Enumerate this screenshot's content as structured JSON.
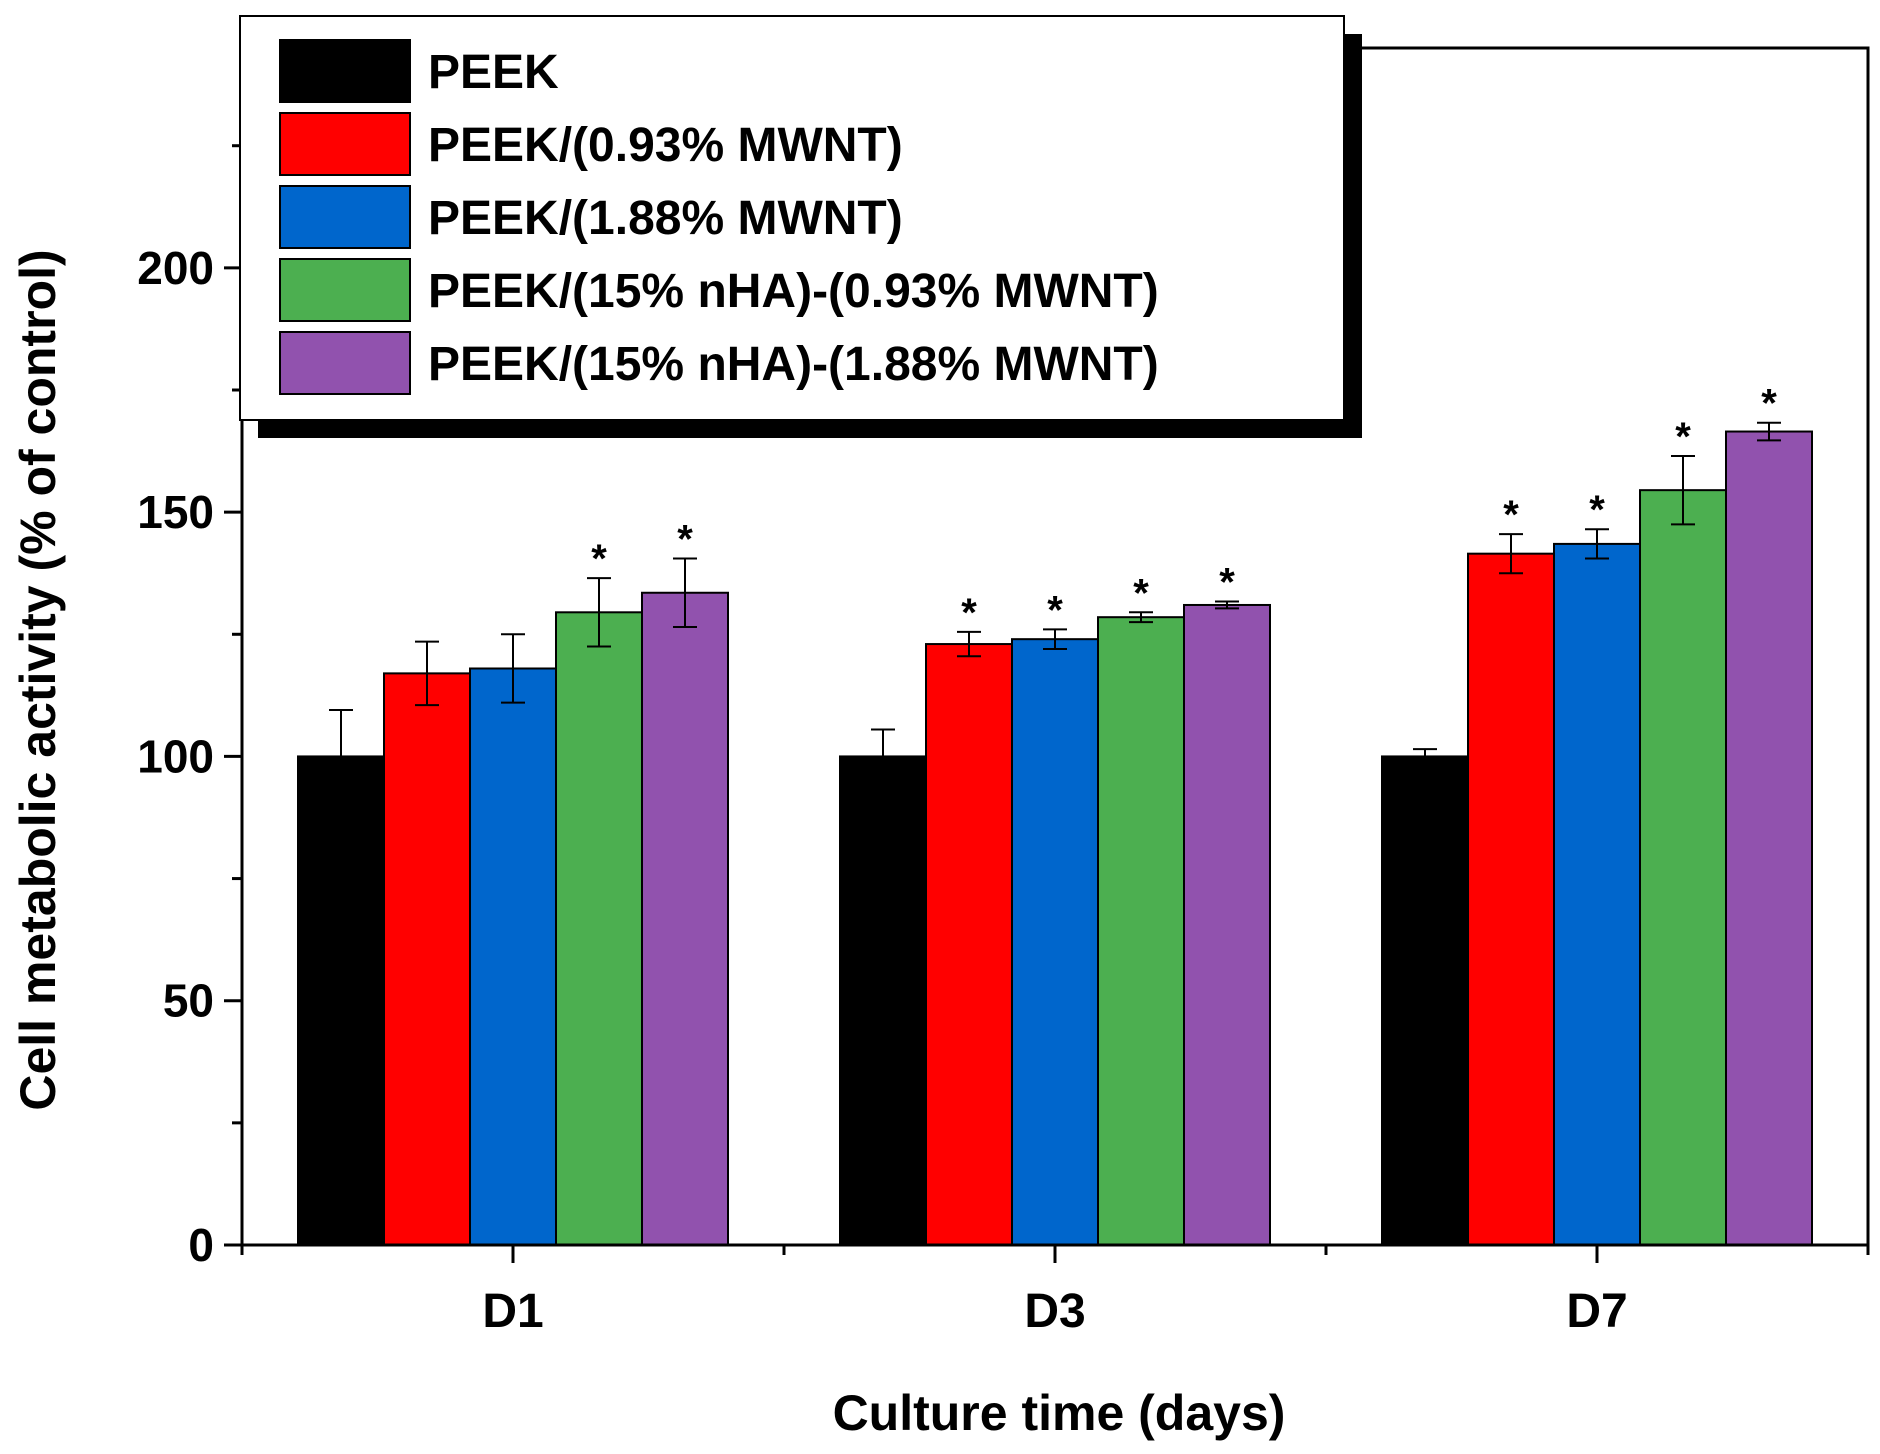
{
  "chart_data": {
    "type": "bar",
    "title": "",
    "xlabel": "Culture time (days)",
    "ylabel": "Cell metabolic activity (% of control)",
    "categories": [
      "D1",
      "D3",
      "D7"
    ],
    "ylim": [
      0,
      245
    ],
    "yticks": [
      0,
      50,
      100,
      150,
      200
    ],
    "ytick_labels": [
      "0",
      "50",
      "100",
      "150",
      "200"
    ],
    "legend_position": "top-left",
    "significance_marker": "*",
    "series": [
      {
        "name": "PEEK",
        "color": "#000000",
        "values": [
          100,
          100,
          100
        ],
        "errors": [
          9.5,
          5.5,
          1.5
        ],
        "significant": [
          false,
          false,
          false
        ]
      },
      {
        "name": "PEEK/(0.93% MWNT)",
        "color": "#ff0000",
        "values": [
          117,
          123,
          141.5
        ],
        "errors": [
          6.5,
          2.5,
          4
        ],
        "significant": [
          false,
          true,
          true
        ]
      },
      {
        "name": "PEEK/(1.88% MWNT)",
        "color": "#0066cc",
        "values": [
          118,
          124,
          143.5
        ],
        "errors": [
          7,
          2,
          3
        ],
        "significant": [
          false,
          true,
          true
        ]
      },
      {
        "name": "PEEK/(15% nHA)-(0.93% MWNT)",
        "color": "#4caf50",
        "values": [
          129.5,
          128.5,
          154.5
        ],
        "errors": [
          7,
          1,
          7
        ],
        "significant": [
          true,
          true,
          true
        ]
      },
      {
        "name": "PEEK/(15% nHA)-(1.88% MWNT)",
        "color": "#9152ae",
        "values": [
          133.5,
          131,
          166.5
        ],
        "errors": [
          7,
          0.7,
          1.8
        ],
        "significant": [
          true,
          true,
          true
        ]
      }
    ]
  }
}
